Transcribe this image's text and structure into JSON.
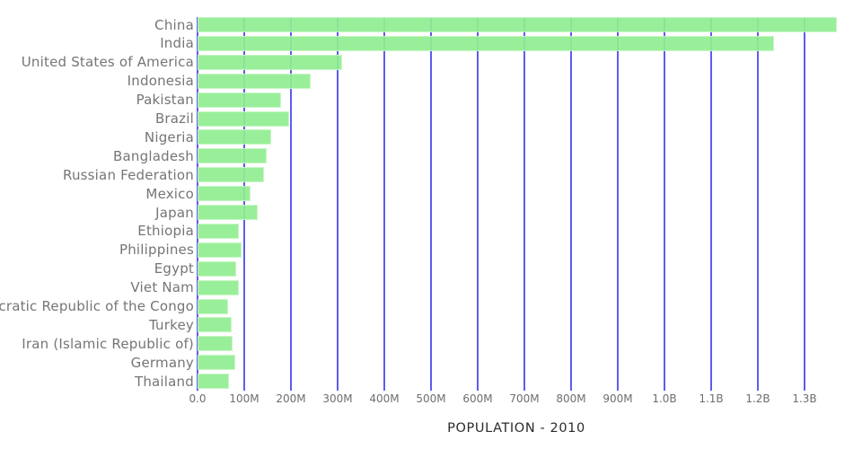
{
  "chart_data": {
    "type": "bar",
    "orientation": "horizontal",
    "title": "POPULATION - 2010",
    "categories": [
      "China",
      "India",
      "United States of America",
      "Indonesia",
      "Pakistan",
      "Brazil",
      "Nigeria",
      "Bangladesh",
      "Russian Federation",
      "Mexico",
      "Japan",
      "Ethiopia",
      "Philippines",
      "Egypt",
      "Viet Nam",
      "Democratic Republic of the Congo",
      "Turkey",
      "Iran (Islamic Republic of)",
      "Germany",
      "Thailand"
    ],
    "values_millions": [
      1368.8,
      1234.3,
      309.0,
      241.8,
      179.4,
      195.7,
      158.5,
      147.6,
      143.2,
      114.1,
      128.1,
      87.6,
      94.0,
      82.8,
      88.0,
      64.6,
      72.3,
      74.6,
      80.8,
      67.2
    ],
    "x_axis": {
      "label": "",
      "tick_labels": [
        "0.0",
        "100M",
        "200M",
        "300M",
        "400M",
        "500M",
        "600M",
        "700M",
        "800M",
        "900M",
        "1.0B",
        "1.1B",
        "1.2B",
        "1.3B"
      ],
      "tick_values_millions": [
        0,
        100,
        200,
        300,
        400,
        500,
        600,
        700,
        800,
        900,
        1000,
        1100,
        1200,
        1300
      ],
      "range_millions": [
        0,
        1423
      ]
    },
    "grid": true,
    "legend": false,
    "colors": {
      "bar_fill": "#90ee90",
      "gridline": "#5d5dec",
      "y_label_text": "#757575",
      "x_tick_text": "#6e6e6e",
      "title_text": "#2b2b2b",
      "background": "#ffffff"
    }
  }
}
